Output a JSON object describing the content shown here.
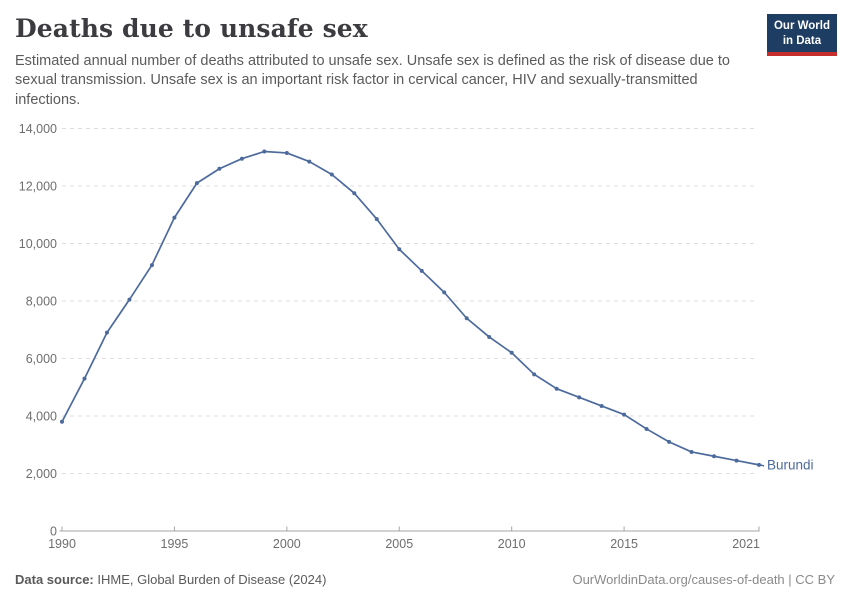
{
  "header": {
    "title": "Deaths due to unsafe sex",
    "subtitle": "Estimated annual number of deaths attributed to unsafe sex. Unsafe sex is defined as the risk of disease due to sexual transmission. Unsafe sex is an important risk factor in cervical cancer, HIV and sexually-transmitted infections.",
    "logo": {
      "line1": "Our World",
      "line2": "in Data"
    }
  },
  "chart_data": {
    "type": "line",
    "title": "Deaths due to unsafe sex",
    "x": [
      1990,
      1991,
      1992,
      1993,
      1994,
      1995,
      1996,
      1997,
      1998,
      1999,
      2000,
      2001,
      2002,
      2003,
      2004,
      2005,
      2006,
      2007,
      2008,
      2009,
      2010,
      2011,
      2012,
      2013,
      2014,
      2015,
      2016,
      2017,
      2018,
      2019,
      2020,
      2021
    ],
    "series": [
      {
        "name": "Burundi",
        "values": [
          3800,
          5300,
          6900,
          8050,
          9250,
          10900,
          12100,
          12600,
          12950,
          13200,
          13150,
          12850,
          12400,
          11750,
          10850,
          9800,
          9050,
          8300,
          7400,
          6750,
          6200,
          5450,
          4950,
          4650,
          4350,
          4050,
          3550,
          3100,
          2750,
          2600,
          2450,
          2300
        ]
      }
    ],
    "xlabel": "",
    "ylabel": "",
    "xlim": [
      1990,
      2021
    ],
    "ylim": [
      0,
      14000
    ],
    "x_ticks": [
      1990,
      1995,
      2000,
      2005,
      2010,
      2015,
      2021
    ],
    "y_ticks": [
      0,
      2000,
      4000,
      6000,
      8000,
      10000,
      12000,
      14000
    ],
    "grid": "horizontal-dashed",
    "legend_position": "end-of-line",
    "end_label": "Burundi"
  },
  "colors": {
    "line": "#4c6a9c",
    "end_label": "#4c6a9c",
    "grid": "#dedede",
    "axis": "#a5a5a5",
    "tick_label": "#6e6e6e",
    "logo_bg": "#1d3d63",
    "logo_stripe": "#c62e2e"
  },
  "footer": {
    "source_label": "Data source:",
    "source_text": " IHME, Global Burden of Disease (2024)",
    "link_text": "OurWorldinData.org/causes-of-death | CC BY"
  }
}
